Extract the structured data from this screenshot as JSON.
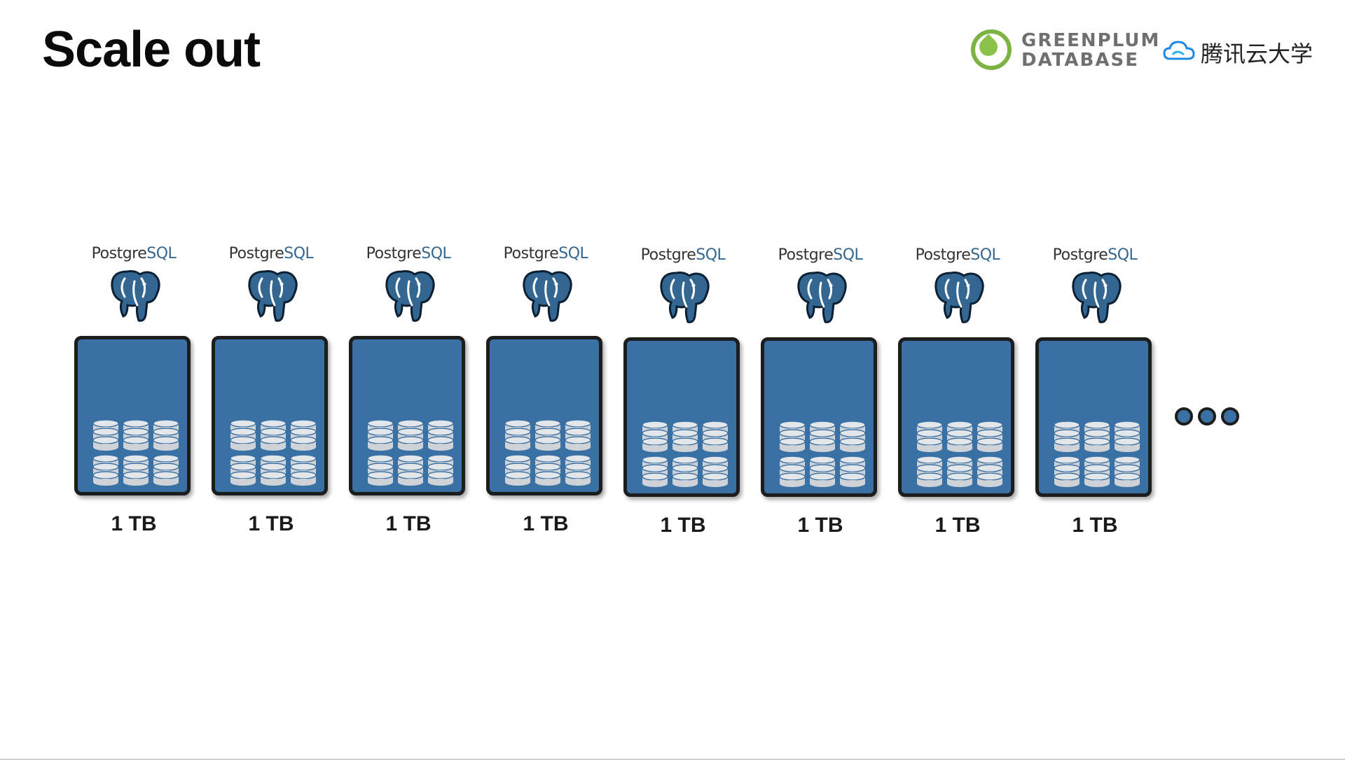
{
  "slide": {
    "title": "Scale out",
    "logos": {
      "greenplum_line1": "GREENPLUM",
      "greenplum_line2": "DATABASE",
      "tencent_text": "腾讯云大学"
    }
  },
  "nodes": [
    {
      "pg_name": "Postgre",
      "pg_suffix": "SQL",
      "capacity": "1 TB"
    },
    {
      "pg_name": "Postgre",
      "pg_suffix": "SQL",
      "capacity": "1 TB"
    },
    {
      "pg_name": "Postgre",
      "pg_suffix": "SQL",
      "capacity": "1 TB"
    },
    {
      "pg_name": "Postgre",
      "pg_suffix": "SQL",
      "capacity": "1 TB"
    },
    {
      "pg_name": "Postgre",
      "pg_suffix": "SQL",
      "capacity": "1 TB"
    },
    {
      "pg_name": "Postgre",
      "pg_suffix": "SQL",
      "capacity": "1 TB"
    },
    {
      "pg_name": "Postgre",
      "pg_suffix": "SQL",
      "capacity": "1 TB"
    },
    {
      "pg_name": "Postgre",
      "pg_suffix": "SQL",
      "capacity": "1 TB"
    }
  ],
  "colors": {
    "server_fill": "#3a71a5",
    "server_border": "#1d1d1d",
    "disk": "#cfd3d8",
    "elephant": "#336791",
    "greenplum": "#7cb342",
    "tencent_blue": "#1e88e5"
  },
  "icons": {
    "node_icon": "postgresql-elephant-icon",
    "storage_icon": "database-cylinder-icon",
    "more_icon": "ellipsis-dots-icon"
  }
}
